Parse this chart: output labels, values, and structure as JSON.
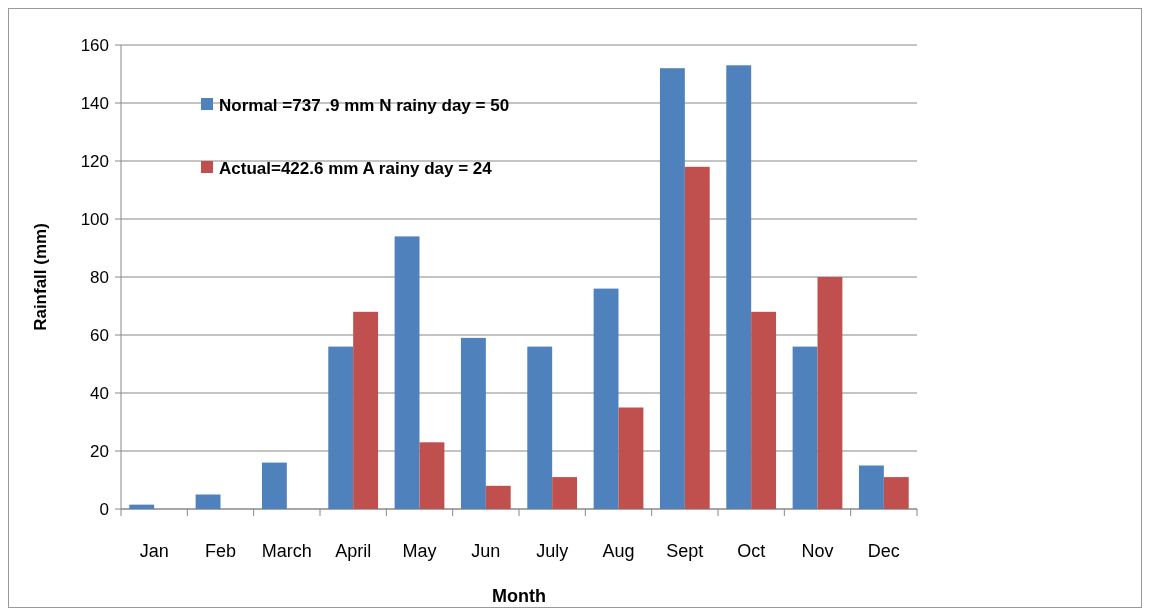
{
  "chart_data": {
    "type": "bar",
    "xlabel": "Month",
    "ylabel": "Rainfall (mm)",
    "categories": [
      "Jan",
      "Feb",
      "March",
      "April",
      "May",
      "Jun",
      "July",
      "Aug",
      "Sept",
      "Oct",
      "Nov",
      "Dec"
    ],
    "series": [
      {
        "name": "Normal =737 .9 mm  N rainy  day = 50",
        "color": "#4f81bd",
        "values": [
          1.5,
          5,
          16,
          56,
          94,
          59,
          56,
          76,
          152,
          153,
          56,
          15
        ]
      },
      {
        "name": "Actual=422.6 mm  A rainy day = 24",
        "color": "#c0504d",
        "values": [
          0,
          0,
          0,
          68,
          23,
          8,
          11,
          35,
          118,
          68,
          80,
          11
        ]
      }
    ],
    "ylim": [
      0,
      160
    ],
    "yticks": [
      0,
      20,
      40,
      60,
      80,
      100,
      120,
      140,
      160
    ],
    "grid": "y",
    "legend": "top left"
  }
}
